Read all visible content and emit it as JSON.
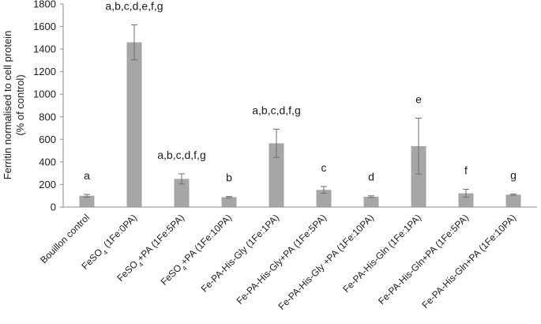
{
  "chart_data": {
    "type": "bar",
    "title": "",
    "xlabel": "",
    "ylabel": [
      "Ferritin normalised to cell protein",
      "(% of control)"
    ],
    "ylim": [
      0,
      1800
    ],
    "yticks": [
      0,
      200,
      400,
      600,
      800,
      1000,
      1200,
      1400,
      1600,
      1800
    ],
    "grid": false,
    "legend": "none",
    "bar_color": "#a6a6a6",
    "error_color": "#6f6f6f",
    "categories": [
      {
        "pre": "Bouillon control",
        "sub": "",
        "post": ""
      },
      {
        "pre": "FeSO",
        "sub": "4",
        "post": " (1Fe:0PA)"
      },
      {
        "pre": "FeSO",
        "sub": "4",
        "post": "+PA (1Fe:5PA)"
      },
      {
        "pre": "FeSO",
        "sub": "4",
        "post": "+PA (1Fe:10PA)"
      },
      {
        "pre": "Fe-PA-His-Gly (1Fe:1PA)",
        "sub": "",
        "post": ""
      },
      {
        "pre": "Fe-PA-His-Gly+PA (1Fe:5PA)",
        "sub": "",
        "post": ""
      },
      {
        "pre": "Fe-PA-His-Gly +PA (1Fe:10PA)",
        "sub": "",
        "post": ""
      },
      {
        "pre": "Fe-PA-His-Gln (1Fe:1PA)",
        "sub": "",
        "post": ""
      },
      {
        "pre": "Fe-PA-His-Gln+PA (1Fe:5PA)",
        "sub": "",
        "post": ""
      },
      {
        "pre": "Fe-PA-His-Gln+PA (1Fe:10PA)",
        "sub": "",
        "post": ""
      }
    ],
    "values": [
      100,
      1460,
      250,
      88,
      565,
      152,
      92,
      540,
      122,
      110
    ],
    "errors": [
      12,
      155,
      45,
      6,
      125,
      30,
      8,
      248,
      35,
      6
    ],
    "annotations": [
      "a",
      "a,b,c,d,e,f,g",
      "a,b,c,d,f,g",
      "b",
      "a,b,c,d,f,g",
      "c",
      "d",
      "e",
      "f",
      "g"
    ]
  }
}
